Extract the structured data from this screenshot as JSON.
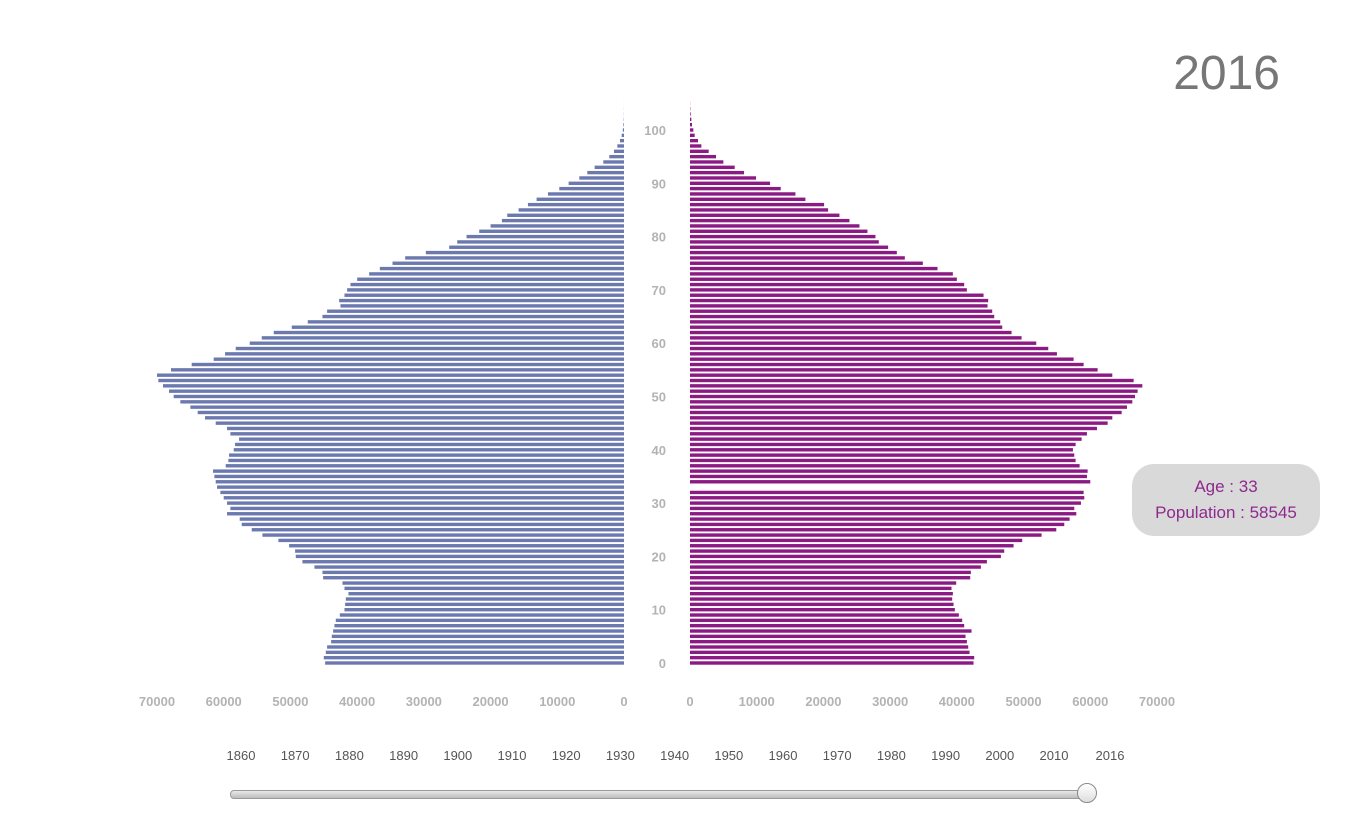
{
  "title": "2016",
  "tooltip": {
    "age_label": "Age : 33",
    "population_label": "Population : 58545"
  },
  "colors": {
    "male": "#6b79ae",
    "female": "#8b1a82",
    "tick": "#b3b3b3",
    "tooltip_text": "#8e2a8e",
    "tooltip_bg": "#d9d9d9"
  },
  "timeline": {
    "labels": [
      "1860",
      "1870",
      "1880",
      "1890",
      "1900",
      "1910",
      "1920",
      "1930",
      "1940",
      "1950",
      "1960",
      "1970",
      "1980",
      "1990",
      "2000",
      "2010",
      "2016"
    ],
    "selected": "2016"
  },
  "chart_data": {
    "type": "bar",
    "orientation": "horizontal-pyramid",
    "age_ticks": [
      "0",
      "10",
      "20",
      "30",
      "40",
      "50",
      "60",
      "70",
      "80",
      "90",
      "100"
    ],
    "x_ticks_left": [
      "70000",
      "60000",
      "50000",
      "40000",
      "30000",
      "20000",
      "10000",
      "0"
    ],
    "x_ticks_right": [
      "0",
      "10000",
      "20000",
      "30000",
      "40000",
      "50000",
      "60000",
      "70000"
    ],
    "xlim": [
      0,
      70000
    ],
    "highlighted_age": 33,
    "ages": [
      0,
      1,
      2,
      3,
      4,
      5,
      6,
      7,
      8,
      9,
      10,
      11,
      12,
      13,
      14,
      15,
      16,
      17,
      18,
      19,
      20,
      21,
      22,
      23,
      24,
      25,
      26,
      27,
      28,
      29,
      30,
      31,
      32,
      33,
      34,
      35,
      36,
      37,
      38,
      39,
      40,
      41,
      42,
      43,
      44,
      45,
      46,
      47,
      48,
      49,
      50,
      51,
      52,
      53,
      54,
      55,
      56,
      57,
      58,
      59,
      60,
      61,
      62,
      63,
      64,
      65,
      66,
      67,
      68,
      69,
      70,
      71,
      72,
      73,
      74,
      75,
      76,
      77,
      78,
      79,
      80,
      81,
      82,
      83,
      84,
      85,
      86,
      87,
      88,
      89,
      90,
      91,
      92,
      93,
      94,
      95,
      96,
      97,
      98,
      99,
      100,
      101,
      102,
      103,
      104,
      105
    ],
    "series": [
      {
        "side": "left",
        "values": [
          44800,
          45000,
          44700,
          44500,
          43900,
          43800,
          43600,
          43400,
          43200,
          42600,
          41900,
          41800,
          41700,
          41300,
          41900,
          42200,
          45100,
          45200,
          46400,
          48200,
          49200,
          49300,
          50200,
          51800,
          54200,
          55800,
          57300,
          57600,
          59500,
          59000,
          59500,
          60000,
          60500,
          61000,
          61200,
          61400,
          61600,
          59700,
          59300,
          59200,
          58500,
          58300,
          57700,
          59000,
          59500,
          61200,
          62800,
          63900,
          65000,
          66500,
          67500,
          68200,
          69100,
          69800,
          70000,
          67900,
          64800,
          61500,
          59800,
          58200,
          56100,
          54300,
          52500,
          49800,
          47400,
          45200,
          44500,
          42500,
          42700,
          41900,
          41500,
          41000,
          40000,
          38200,
          36600,
          34700,
          32800,
          29700,
          26200,
          25000,
          23600,
          21700,
          20000,
          18300,
          17500,
          15800,
          14400,
          13100,
          11400,
          9700,
          8300,
          6700,
          5500,
          4400,
          3100,
          2200,
          1500,
          1000,
          600,
          350,
          180,
          90,
          40,
          20,
          10,
          5
        ]
      },
      {
        "side": "right",
        "values": [
          42500,
          42600,
          41900,
          41700,
          41500,
          41300,
          42200,
          41100,
          40800,
          40300,
          39700,
          39500,
          39300,
          39400,
          39200,
          39900,
          42000,
          42100,
          43600,
          44500,
          46600,
          47100,
          48500,
          49800,
          52700,
          54900,
          56100,
          56900,
          57900,
          57600,
          58600,
          59100,
          59000,
          58545,
          60000,
          59500,
          59600,
          58400,
          57800,
          57600,
          57400,
          57800,
          58700,
          59500,
          61000,
          62600,
          63300,
          64700,
          65500,
          66300,
          66700,
          67100,
          67800,
          66500,
          63300,
          61100,
          59000,
          57500,
          55000,
          53700,
          51900,
          49700,
          48200,
          46800,
          46500,
          45600,
          45300,
          44600,
          44700,
          44000,
          41500,
          41100,
          40000,
          39400,
          37100,
          34900,
          32200,
          31000,
          29700,
          28300,
          27800,
          26600,
          25400,
          23900,
          22400,
          20700,
          20100,
          17300,
          15800,
          13600,
          12000,
          9900,
          8100,
          6700,
          5000,
          3900,
          2800,
          1700,
          1200,
          700,
          500,
          300,
          200,
          100,
          50,
          20
        ]
      }
    ]
  }
}
